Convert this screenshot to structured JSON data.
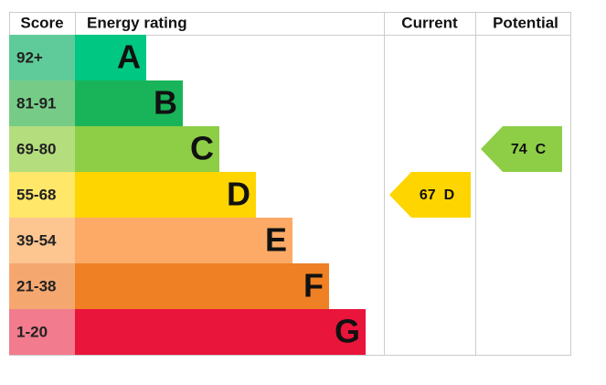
{
  "header": {
    "score": "Score",
    "energy_rating": "Energy rating",
    "current": "Current",
    "potential": "Potential"
  },
  "bands": [
    {
      "score": "92+",
      "letter": "A"
    },
    {
      "score": "81-91",
      "letter": "B"
    },
    {
      "score": "69-80",
      "letter": "C"
    },
    {
      "score": "55-68",
      "letter": "D"
    },
    {
      "score": "39-54",
      "letter": "E"
    },
    {
      "score": "21-38",
      "letter": "F"
    },
    {
      "score": "1-20",
      "letter": "G"
    }
  ],
  "current": {
    "value": 67,
    "band": "D"
  },
  "potential": {
    "value": 74,
    "band": "C"
  }
}
